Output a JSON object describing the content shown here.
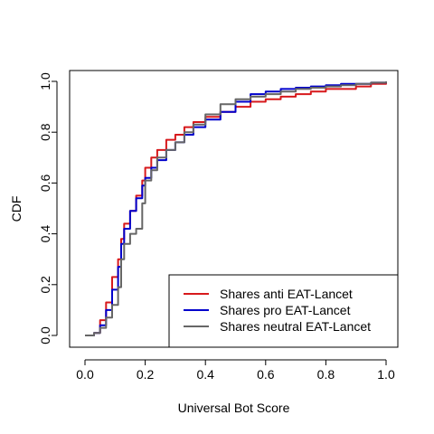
{
  "chart_data": {
    "type": "line",
    "xlabel": "Universal Bot Score",
    "ylabel": "CDF",
    "xlim": [
      0,
      1
    ],
    "ylim": [
      0,
      1
    ],
    "x_ticks": [
      "0.0",
      "0.2",
      "0.4",
      "0.6",
      "0.8",
      "1.0"
    ],
    "y_ticks": [
      "0.0",
      "0.2",
      "0.4",
      "0.6",
      "0.8",
      "1.0"
    ],
    "grid": false,
    "legend_position": "bottom-right",
    "series": [
      {
        "name": "Shares anti EAT-Lancet",
        "color": "#d7191c",
        "x": [
          0.0,
          0.03,
          0.05,
          0.07,
          0.09,
          0.11,
          0.12,
          0.13,
          0.15,
          0.17,
          0.19,
          0.2,
          0.22,
          0.24,
          0.27,
          0.3,
          0.33,
          0.36,
          0.4,
          0.45,
          0.5,
          0.55,
          0.6,
          0.65,
          0.7,
          0.75,
          0.8,
          0.85,
          0.9,
          0.95,
          1.0
        ],
        "y": [
          0.0,
          0.01,
          0.06,
          0.13,
          0.23,
          0.3,
          0.38,
          0.44,
          0.49,
          0.55,
          0.61,
          0.66,
          0.7,
          0.73,
          0.77,
          0.79,
          0.82,
          0.84,
          0.86,
          0.88,
          0.9,
          0.92,
          0.93,
          0.94,
          0.95,
          0.96,
          0.97,
          0.97,
          0.98,
          0.99,
          1.0
        ]
      },
      {
        "name": "Shares pro EAT-Lancet",
        "color": "#0000cc",
        "x": [
          0.0,
          0.03,
          0.05,
          0.07,
          0.09,
          0.11,
          0.12,
          0.13,
          0.15,
          0.17,
          0.19,
          0.2,
          0.22,
          0.24,
          0.27,
          0.3,
          0.33,
          0.36,
          0.4,
          0.45,
          0.5,
          0.55,
          0.6,
          0.65,
          0.7,
          0.75,
          0.8,
          0.85,
          0.9,
          0.95,
          1.0
        ],
        "y": [
          0.0,
          0.01,
          0.04,
          0.1,
          0.18,
          0.27,
          0.36,
          0.42,
          0.49,
          0.54,
          0.59,
          0.62,
          0.66,
          0.69,
          0.73,
          0.76,
          0.79,
          0.82,
          0.85,
          0.88,
          0.92,
          0.95,
          0.96,
          0.97,
          0.975,
          0.98,
          0.985,
          0.99,
          0.99,
          0.995,
          1.0
        ]
      },
      {
        "name": "Shares neutral EAT-Lancet",
        "color": "#666666",
        "x": [
          0.0,
          0.03,
          0.05,
          0.07,
          0.09,
          0.11,
          0.12,
          0.13,
          0.15,
          0.17,
          0.19,
          0.2,
          0.22,
          0.24,
          0.27,
          0.3,
          0.33,
          0.36,
          0.4,
          0.45,
          0.5,
          0.55,
          0.6,
          0.65,
          0.7,
          0.75,
          0.8,
          0.85,
          0.9,
          0.95,
          1.0
        ],
        "y": [
          0.0,
          0.01,
          0.03,
          0.07,
          0.12,
          0.19,
          0.3,
          0.36,
          0.4,
          0.42,
          0.52,
          0.61,
          0.65,
          0.7,
          0.73,
          0.76,
          0.8,
          0.83,
          0.87,
          0.91,
          0.93,
          0.94,
          0.95,
          0.96,
          0.97,
          0.975,
          0.98,
          0.985,
          0.99,
          0.995,
          1.0
        ]
      }
    ]
  }
}
